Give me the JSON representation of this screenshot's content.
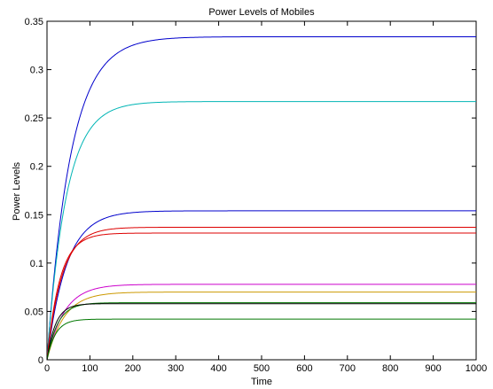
{
  "chart_data": {
    "type": "line",
    "title": "Power Levels of Mobiles",
    "xlabel": "Time",
    "ylabel": "Power Levels",
    "xlim": [
      0,
      1000
    ],
    "ylim": [
      0,
      0.35
    ],
    "xticks": [
      0,
      100,
      200,
      300,
      400,
      500,
      600,
      700,
      800,
      900,
      1000
    ],
    "yticks": [
      0,
      0.05,
      0.1,
      0.15,
      0.2,
      0.25,
      0.3,
      0.35
    ],
    "xtick_labels": [
      "0",
      "100",
      "200",
      "300",
      "400",
      "500",
      "600",
      "700",
      "800",
      "900",
      "1000"
    ],
    "ytick_labels": [
      "0",
      "0.05",
      "0.1",
      "0.15",
      "0.2",
      "0.25",
      "0.3",
      "0.35"
    ],
    "grid": false,
    "legend": "none",
    "series": [
      {
        "color": "#0000cc",
        "final": 0.334,
        "tau": 55,
        "start": 0
      },
      {
        "color": "#00b5b5",
        "final": 0.267,
        "tau": 45,
        "start": 0
      },
      {
        "color": "#0000cc",
        "final": 0.154,
        "tau": 45,
        "start": 0
      },
      {
        "color": "#dd0000",
        "final": 0.137,
        "tau": 35,
        "start": 0
      },
      {
        "color": "#dd0000",
        "final": 0.131,
        "tau": 30,
        "start": 0
      },
      {
        "color": "#cc00cc",
        "final": 0.078,
        "tau": 40,
        "start": 0
      },
      {
        "color": "#cc9900",
        "final": 0.07,
        "tau": 40,
        "start": 0
      },
      {
        "color": "#007700",
        "final": 0.059,
        "tau": 25,
        "start": 0
      },
      {
        "color": "#000000",
        "final": 0.058,
        "tau": 20,
        "start": 0
      },
      {
        "color": "#007700",
        "final": 0.042,
        "tau": 20,
        "start": 0
      }
    ]
  }
}
